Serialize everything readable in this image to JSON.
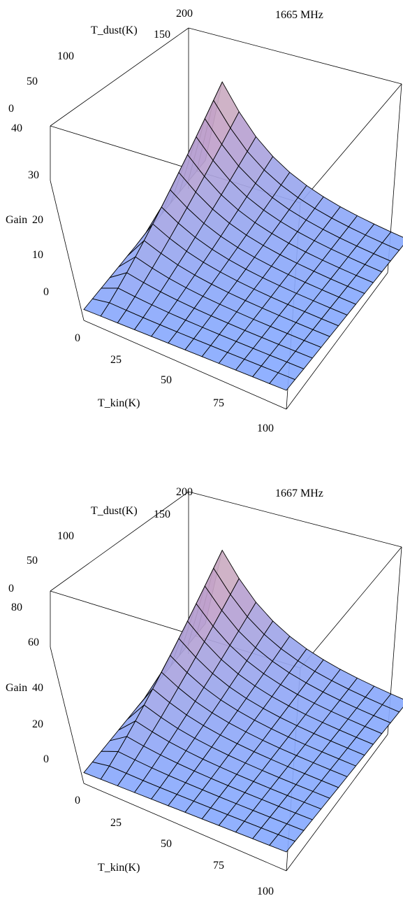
{
  "chart_data": [
    {
      "type": "surface",
      "annotation": "1665 MHz",
      "xlabel": "T_kin(K)",
      "ylabel": "T_dust(K)",
      "zlabel": "Gain",
      "x_ticks": [
        "0",
        "25",
        "50",
        "75",
        "100"
      ],
      "y_ticks": [
        "0",
        "50",
        "100",
        "150",
        "200"
      ],
      "z_ticks": [
        "0",
        "10",
        "20",
        "30",
        "40"
      ],
      "xlim": [
        0,
        100
      ],
      "ylim": [
        0,
        200
      ],
      "zlim": [
        -8,
        40
      ],
      "peak_gain": 38,
      "colors": {
        "low": "#88aaff",
        "mid": "#c3a0c8",
        "high": "#f5f5a0",
        "edge": "#000000"
      }
    },
    {
      "type": "surface",
      "annotation": "1667 MHz",
      "xlabel": "T_kin(K)",
      "ylabel": "T_dust(K)",
      "zlabel": "Gain",
      "x_ticks": [
        "0",
        "25",
        "50",
        "75",
        "100"
      ],
      "y_ticks": [
        "0",
        "50",
        "100",
        "150",
        "200"
      ],
      "z_ticks": [
        "0",
        "20",
        "40",
        "60",
        "80"
      ],
      "xlim": [
        0,
        100
      ],
      "ylim": [
        0,
        200
      ],
      "zlim": [
        -12,
        80
      ],
      "peak_gain": 78,
      "colors": {
        "low": "#88aaff",
        "mid": "#c3a0c8",
        "high": "#f5f5a0",
        "edge": "#000000"
      }
    }
  ]
}
